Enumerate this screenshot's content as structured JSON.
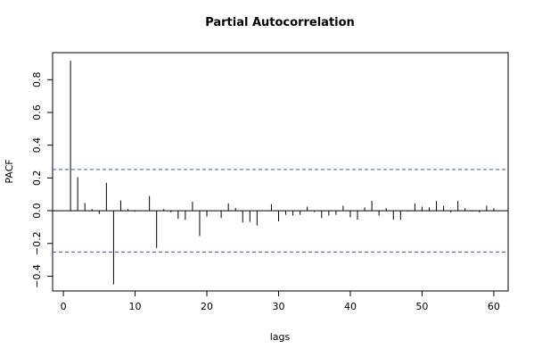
{
  "chart_data": {
    "type": "bar",
    "title": "Partial Autocorrelation",
    "xlabel": "lags",
    "ylabel": "PACF",
    "xlim": [
      -1.5,
      62
    ],
    "ylim": [
      -0.49,
      0.965
    ],
    "x_ticks": [
      0,
      10,
      20,
      30,
      40,
      50,
      60
    ],
    "y_ticks": [
      -0.4,
      -0.2,
      0.0,
      0.2,
      0.4,
      0.6,
      0.8
    ],
    "y_tick_labels": [
      "−0.4",
      "−0.2",
      "0.0",
      "0.2",
      "0.4",
      "0.6",
      "0.8"
    ],
    "zero_line": 0,
    "confidence_bounds": {
      "upper": 0.252,
      "lower": -0.252,
      "color": "#3355cc",
      "style": "dashed"
    },
    "bar_color": "#000000",
    "grid": false,
    "lags": [
      1,
      2,
      3,
      4,
      5,
      6,
      7,
      8,
      9,
      10,
      11,
      12,
      13,
      14,
      15,
      16,
      17,
      18,
      19,
      20,
      21,
      22,
      23,
      24,
      25,
      26,
      27,
      28,
      29,
      30,
      31,
      32,
      33,
      34,
      35,
      36,
      37,
      38,
      39,
      40,
      41,
      42,
      43,
      44,
      45,
      46,
      47,
      48,
      49,
      50,
      51,
      52,
      53,
      54,
      55,
      56,
      57,
      58,
      59,
      60
    ],
    "values": [
      0.915,
      0.205,
      0.047,
      0.01,
      -0.02,
      0.17,
      -0.45,
      0.062,
      0.01,
      -0.005,
      0.0,
      0.09,
      -0.228,
      0.01,
      -0.01,
      -0.05,
      -0.055,
      0.055,
      -0.155,
      -0.035,
      0.0,
      -0.045,
      0.045,
      0.017,
      -0.072,
      -0.068,
      -0.09,
      0.0,
      0.04,
      -0.065,
      -0.025,
      -0.03,
      -0.025,
      0.025,
      -0.008,
      -0.045,
      -0.03,
      -0.025,
      0.03,
      -0.04,
      -0.055,
      0.02,
      0.06,
      -0.03,
      0.015,
      -0.055,
      -0.055,
      -0.005,
      0.045,
      0.025,
      0.02,
      0.06,
      0.03,
      -0.01,
      0.06,
      0.015,
      -0.005,
      -0.01,
      0.03,
      0.015
    ]
  }
}
